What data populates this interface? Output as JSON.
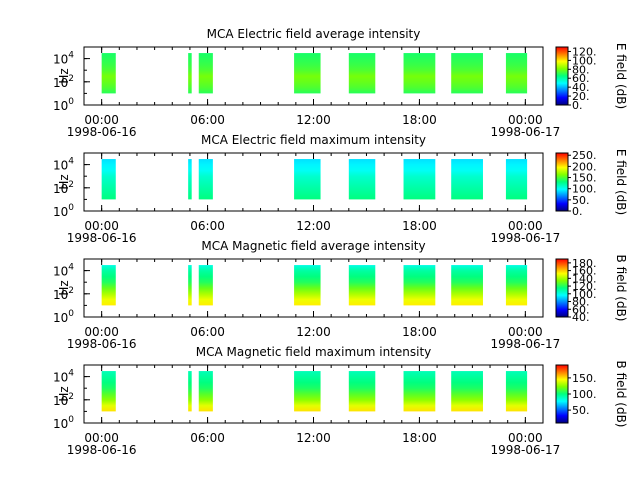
{
  "figure": {
    "background": "#ffffff",
    "colormap": [
      "#00007f",
      "#0000ff",
      "#007fff",
      "#00ffff",
      "#00ff7f",
      "#7fff00",
      "#ffff00",
      "#ff7f00",
      "#ff0000"
    ]
  },
  "chart_data": [
    {
      "type": "heatmap",
      "title": "MCA  Electric field average intensity",
      "ylabel": "Hz",
      "yscale": "log",
      "ylim": [
        1,
        100000
      ],
      "yticks": [
        {
          "value": 1,
          "base": "10",
          "exp": "0"
        },
        {
          "value": 100,
          "base": "10",
          "exp": "2"
        },
        {
          "value": 10000,
          "base": "10",
          "exp": "4"
        }
      ],
      "xticks": [
        "00:00\n1998-06-16",
        "06:00",
        "12:00",
        "18:00",
        "00:00\n1998-06-17"
      ],
      "xlim_hours": [
        -1,
        25
      ],
      "colorbar": {
        "label": "E field (dB)",
        "ticks": [
          "0.",
          "20.",
          "40.",
          "60.",
          "80.",
          "100.",
          "120."
        ],
        "range": [
          0,
          130
        ]
      },
      "intervals_hours": [
        [
          0,
          0.8
        ],
        [
          4.9,
          5.1
        ],
        [
          5.5,
          6.3
        ],
        [
          10.9,
          12.4
        ],
        [
          14.0,
          15.5
        ],
        [
          17.1,
          18.9
        ],
        [
          19.8,
          21.6
        ],
        [
          22.9,
          24.1
        ]
      ],
      "freq_profile_db": [
        70,
        75,
        78,
        80,
        75,
        72,
        70,
        68
      ]
    },
    {
      "type": "heatmap",
      "title": "MCA  Electric field maximum intensity",
      "ylabel": "Hz",
      "yscale": "log",
      "ylim": [
        1,
        100000
      ],
      "yticks": [
        {
          "value": 1,
          "base": "10",
          "exp": "0"
        },
        {
          "value": 100,
          "base": "10",
          "exp": "2"
        },
        {
          "value": 10000,
          "base": "10",
          "exp": "4"
        }
      ],
      "xticks": [
        "00:00\n1998-06-16",
        "06:00",
        "12:00",
        "18:00",
        "00:00\n1998-06-17"
      ],
      "xlim_hours": [
        -1,
        25
      ],
      "colorbar": {
        "label": "E field (dB)",
        "ticks": [
          "0.",
          "50.",
          "100.",
          "150.",
          "200.",
          "250."
        ],
        "range": [
          0,
          260
        ]
      },
      "intervals_hours": [
        [
          0,
          0.8
        ],
        [
          4.9,
          5.1
        ],
        [
          5.5,
          6.3
        ],
        [
          10.9,
          12.4
        ],
        [
          14.0,
          15.5
        ],
        [
          17.1,
          18.9
        ],
        [
          19.8,
          21.6
        ],
        [
          22.9,
          24.1
        ]
      ],
      "freq_profile_db": [
        130,
        125,
        120,
        115,
        110,
        100,
        95,
        90
      ]
    },
    {
      "type": "heatmap",
      "title": "MCA  Magnetic field average intensity",
      "ylabel": "Hz",
      "yscale": "log",
      "ylim": [
        1,
        100000
      ],
      "yticks": [
        {
          "value": 1,
          "base": "10",
          "exp": "0"
        },
        {
          "value": 100,
          "base": "10",
          "exp": "2"
        },
        {
          "value": 10000,
          "base": "10",
          "exp": "4"
        }
      ],
      "xticks": [
        "00:00\n1998-06-16",
        "06:00",
        "12:00",
        "18:00",
        "00:00\n1998-06-17"
      ],
      "xlim_hours": [
        -1,
        25
      ],
      "colorbar": {
        "label": "B field (dB)",
        "ticks": [
          "40.",
          "60.",
          "80.",
          "100.",
          "120.",
          "140.",
          "160.",
          "180."
        ],
        "range": [
          40,
          190
        ]
      },
      "intervals_hours": [
        [
          0,
          0.8
        ],
        [
          4.9,
          5.1
        ],
        [
          5.5,
          6.3
        ],
        [
          10.9,
          12.4
        ],
        [
          14.0,
          15.5
        ],
        [
          17.1,
          18.9
        ],
        [
          19.8,
          21.6
        ],
        [
          22.9,
          24.1
        ]
      ],
      "freq_profile_db": [
        155,
        150,
        140,
        130,
        120,
        115,
        110,
        100
      ]
    },
    {
      "type": "heatmap",
      "title": "MCA  Magnetic field maximum intensity",
      "ylabel": "Hz",
      "yscale": "log",
      "ylim": [
        1,
        100000
      ],
      "yticks": [
        {
          "value": 1,
          "base": "10",
          "exp": "0"
        },
        {
          "value": 100,
          "base": "10",
          "exp": "2"
        },
        {
          "value": 10000,
          "base": "10",
          "exp": "4"
        }
      ],
      "xticks": [
        "00:00\n1998-06-16",
        "06:00",
        "12:00",
        "18:00",
        "00:00\n1998-06-17"
      ],
      "xlim_hours": [
        -1,
        25
      ],
      "colorbar": {
        "label": "B field (dB)",
        "ticks": [
          "50.",
          "100.",
          "150."
        ],
        "range": [
          10,
          190
        ]
      },
      "intervals_hours": [
        [
          0,
          0.8
        ],
        [
          4.9,
          5.1
        ],
        [
          5.5,
          6.3
        ],
        [
          10.9,
          12.4
        ],
        [
          14.0,
          15.5
        ],
        [
          17.1,
          18.9
        ],
        [
          19.8,
          21.6
        ],
        [
          22.9,
          24.1
        ]
      ],
      "freq_profile_db": [
        150,
        140,
        125,
        115,
        105,
        100,
        95,
        90
      ]
    }
  ]
}
